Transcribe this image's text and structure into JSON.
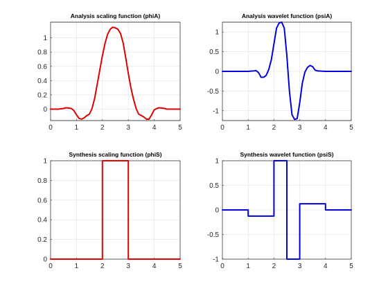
{
  "chart_data": [
    {
      "type": "line",
      "title": "Analysis scaling function (phiA)",
      "xlim": [
        0,
        5
      ],
      "ylim": [
        -0.16,
        1.22
      ],
      "xticks": [
        0,
        1,
        2,
        3,
        4,
        5
      ],
      "yticks": [
        0,
        0.2,
        0.4,
        0.6,
        0.8,
        1
      ],
      "xtick_labels": [
        "0",
        "1",
        "2",
        "3",
        "4",
        "5"
      ],
      "ytick_labels": [
        "0",
        "0.2",
        "0.4",
        "0.6",
        "0.8",
        "1"
      ],
      "grid": true,
      "color": "#e00000",
      "x": [
        0,
        0.3,
        0.5,
        0.6,
        0.7,
        0.8,
        0.9,
        1.0,
        1.1,
        1.2,
        1.3,
        1.4,
        1.5,
        1.6,
        1.7,
        1.8,
        1.9,
        2.0,
        2.1,
        2.2,
        2.3,
        2.4,
        2.5,
        2.6,
        2.7,
        2.8,
        2.9,
        3.0,
        3.1,
        3.2,
        3.3,
        3.4,
        3.5,
        3.6,
        3.7,
        3.8,
        3.9,
        4.0,
        4.1,
        4.2,
        4.3,
        4.4,
        4.5,
        4.7,
        5.0
      ],
      "y": [
        0,
        0.0,
        0.01,
        0.02,
        0.015,
        0.01,
        -0.02,
        -0.08,
        -0.13,
        -0.14,
        -0.12,
        -0.09,
        -0.07,
        0.01,
        0.15,
        0.35,
        0.55,
        0.75,
        0.92,
        1.05,
        1.12,
        1.15,
        1.14,
        1.12,
        1.06,
        0.93,
        0.72,
        0.5,
        0.3,
        0.14,
        0.01,
        -0.07,
        -0.09,
        -0.11,
        -0.14,
        -0.14,
        -0.08,
        -0.01,
        0.01,
        0.02,
        0.015,
        0.01,
        0.0,
        0.0,
        0
      ]
    },
    {
      "type": "line",
      "title": "Analysis wavelet function (psiA)",
      "xlim": [
        0,
        5
      ],
      "ylim": [
        -1.25,
        1.25
      ],
      "xticks": [
        0,
        1,
        2,
        3,
        4,
        5
      ],
      "yticks": [
        -1,
        -0.5,
        0,
        0.5,
        1
      ],
      "xtick_labels": [
        "0",
        "1",
        "2",
        "3",
        "4",
        "5"
      ],
      "ytick_labels": [
        "-1",
        "-0.5",
        "0",
        "0.5",
        "1"
      ],
      "grid": true,
      "color": "#0000e0",
      "x": [
        0,
        0.5,
        1.0,
        1.2,
        1.3,
        1.4,
        1.5,
        1.6,
        1.7,
        1.8,
        1.9,
        2.0,
        2.1,
        2.2,
        2.3,
        2.4,
        2.5,
        2.6,
        2.7,
        2.8,
        2.9,
        3.0,
        3.1,
        3.2,
        3.3,
        3.4,
        3.5,
        3.6,
        3.7,
        4.0,
        4.5,
        5.0
      ],
      "y": [
        0,
        0.0,
        0.0,
        0.01,
        0.02,
        -0.03,
        -0.15,
        -0.15,
        -0.1,
        0.05,
        0.3,
        0.7,
        1.1,
        1.23,
        1.25,
        1.1,
        0.4,
        -0.5,
        -1.1,
        -1.22,
        -1.2,
        -0.8,
        -0.3,
        -0.02,
        0.1,
        0.15,
        0.12,
        0.03,
        0.01,
        0.0,
        0.0,
        0
      ]
    },
    {
      "type": "line",
      "title": "Synthesis scaling function (phiS)",
      "xlim": [
        0,
        5
      ],
      "ylim": [
        0,
        1
      ],
      "xticks": [
        0,
        1,
        2,
        3,
        4,
        5
      ],
      "yticks": [
        0,
        0.2,
        0.4,
        0.6,
        0.8,
        1
      ],
      "xtick_labels": [
        "0",
        "1",
        "2",
        "3",
        "4",
        "5"
      ],
      "ytick_labels": [
        "0",
        "0.2",
        "0.4",
        "0.6",
        "0.8",
        "1"
      ],
      "grid": true,
      "color": "#e00000",
      "x": [
        0,
        2,
        2,
        3,
        3,
        5
      ],
      "y": [
        0,
        0,
        1,
        1,
        0,
        0
      ]
    },
    {
      "type": "line",
      "title": "Synthesis wavelet function (psiS)",
      "xlim": [
        0,
        5
      ],
      "ylim": [
        -1,
        1
      ],
      "xticks": [
        0,
        1,
        2,
        3,
        4,
        5
      ],
      "yticks": [
        -1,
        -0.5,
        0,
        0.5,
        1
      ],
      "xtick_labels": [
        "0",
        "1",
        "2",
        "3",
        "4",
        "5"
      ],
      "ytick_labels": [
        "-1",
        "-0.5",
        "0",
        "0.5",
        "1"
      ],
      "grid": true,
      "color": "#0000e0",
      "x": [
        0,
        1,
        1,
        2,
        2,
        2.5,
        2.5,
        3,
        3,
        4,
        4,
        5
      ],
      "y": [
        0,
        0,
        -0.125,
        -0.125,
        1,
        1,
        -1,
        -1,
        0.125,
        0.125,
        0,
        0
      ]
    }
  ]
}
